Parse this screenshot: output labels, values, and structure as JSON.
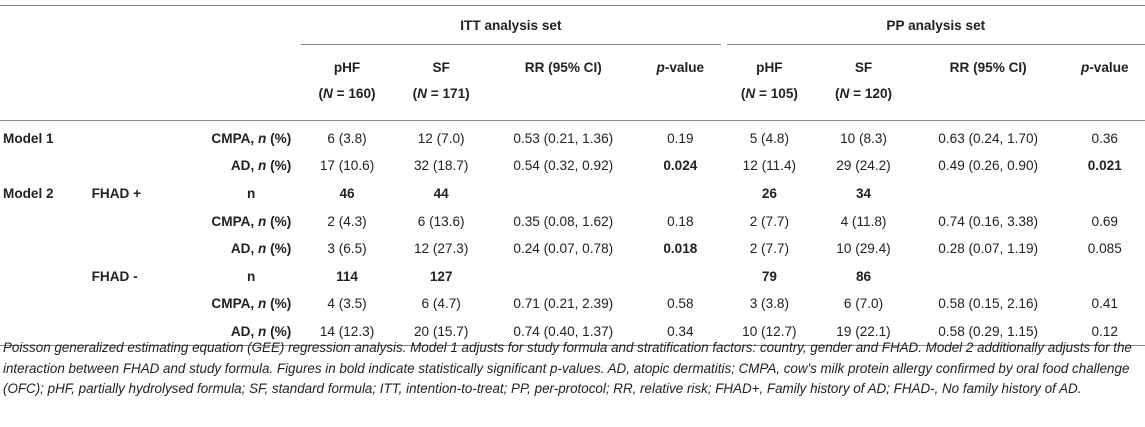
{
  "groups": {
    "itt": "ITT analysis set",
    "pp": "PP analysis set"
  },
  "columns": {
    "itt_phf": {
      "name": "pHF",
      "n": "(N = 160)"
    },
    "itt_sf": {
      "name": "SF",
      "n": "(N = 171)"
    },
    "itt_rr": "RR (95% CI)",
    "itt_p_prefix": "p",
    "itt_p_suffix": "-value",
    "pp_phf": {
      "name": "pHF",
      "n": "(N = 105)"
    },
    "pp_sf": {
      "name": "SF",
      "n": "(N = 120)"
    },
    "pp_rr": "RR (95% CI)",
    "pp_p_prefix": "p",
    "pp_p_suffix": "-value"
  },
  "rows": [
    {
      "model": "Model 1",
      "sub": "",
      "label": "CMPA, ",
      "label_n": "n",
      "label_pct": " (%)",
      "itt_phf": "6 (3.8)",
      "itt_sf": "12 (7.0)",
      "itt_rr": "0.53 (0.21, 1.36)",
      "itt_p": "0.19",
      "pp_phf": "5 (4.8)",
      "pp_sf": "10 (8.3)",
      "pp_rr": "0.63 (0.24, 1.70)",
      "pp_p": "0.36"
    },
    {
      "model": "",
      "sub": "",
      "label": "AD, ",
      "label_n": "n",
      "label_pct": " (%)",
      "itt_phf": "17 (10.6)",
      "itt_sf": "32 (18.7)",
      "itt_rr": "0.54 (0.32, 0.92)",
      "itt_p": "0.024",
      "pp_phf": "12 (11.4)",
      "pp_sf": "29 (24.2)",
      "pp_rr": "0.49 (0.26, 0.90)",
      "pp_p": "0.021"
    },
    {
      "model": "Model 2",
      "sub": "FHAD +",
      "label": "n",
      "itt_phf": "46",
      "itt_sf": "44",
      "pp_phf": "26",
      "pp_sf": "34"
    },
    {
      "label": "CMPA, ",
      "label_n": "n",
      "label_pct": " (%)",
      "itt_phf": "2 (4.3)",
      "itt_sf": "6 (13.6)",
      "itt_rr": "0.35 (0.08, 1.62)",
      "itt_p": "0.18",
      "pp_phf": "2 (7.7)",
      "pp_sf": "4 (11.8)",
      "pp_rr": "0.74 (0.16, 3.38)",
      "pp_p": "0.69"
    },
    {
      "label": "AD, ",
      "label_n": "n",
      "label_pct": " (%)",
      "itt_phf": "3 (6.5)",
      "itt_sf": "12 (27.3)",
      "itt_rr": "0.24 (0.07, 0.78)",
      "itt_p": "0.018",
      "pp_phf": "2 (7.7)",
      "pp_sf": "10 (29.4)",
      "pp_rr": "0.28 (0.07, 1.19)",
      "pp_p": "0.085"
    },
    {
      "sub": "FHAD -",
      "label": "n",
      "itt_phf": "114",
      "itt_sf": "127",
      "pp_phf": "79",
      "pp_sf": "86"
    },
    {
      "label": "CMPA, ",
      "label_n": "n",
      "label_pct": " (%)",
      "itt_phf": "4 (3.5)",
      "itt_sf": "6 (4.7)",
      "itt_rr": "0.71 (0.21, 2.39)",
      "itt_p": "0.58",
      "pp_phf": "3 (3.8)",
      "pp_sf": "6 (7.0)",
      "pp_rr": "0.58 (0.15, 2.16)",
      "pp_p": "0.41"
    },
    {
      "label": "AD, ",
      "label_n": "n",
      "label_pct": " (%)",
      "itt_phf": "14 (12.3)",
      "itt_sf": "20 (15.7)",
      "itt_rr": "0.74 (0.40, 1.37)",
      "itt_p": "0.34",
      "pp_phf": "10 (12.7)",
      "pp_sf": "19 (22.1)",
      "pp_rr": "0.58 (0.29, 1.15)",
      "pp_p": "0.12"
    }
  ],
  "footnote": "Poisson generalized estimating equation (GEE) regression analysis. Model 1 adjusts for study formula and stratification factors: country, gender and FHAD. Model 2 additionally adjusts for the interaction between FHAD and study formula. Figures in bold indicate statistically significant p-values. AD, atopic dermatitis; CMPA, cow's milk protein allergy confirmed by oral food challenge (OFC); pHF, partially hydrolysed formula; SF, standard formula; ITT, intention-to-treat; PP, per-protocol; RR, relative risk; FHAD+, Family history of AD; FHAD-, No family history of AD."
}
